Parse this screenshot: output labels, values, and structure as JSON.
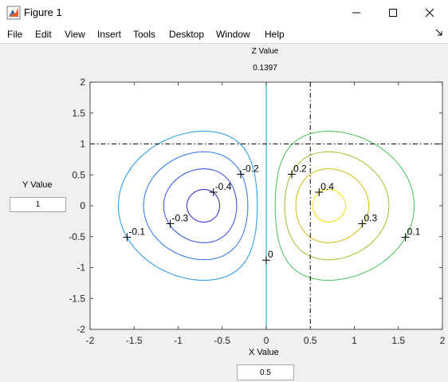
{
  "window": {
    "title": "Figure 1"
  },
  "menu": [
    "File",
    "Edit",
    "View",
    "Insert",
    "Tools",
    "Desktop",
    "Window",
    "Help"
  ],
  "z_label": "Z Value",
  "z_value": "0.1397",
  "y_label": "Y Value",
  "y_value": "1",
  "x_label": "X Value",
  "x_value": "0.5",
  "chart_data": {
    "type": "contour",
    "xlim": [
      -2,
      2
    ],
    "ylim": [
      -2,
      2
    ],
    "xticks": [
      "-2",
      "-1.5",
      "-1",
      "-0.5",
      "0",
      "0.5",
      "1",
      "1.5",
      "2"
    ],
    "yticks": [
      "2",
      "1.5",
      "1",
      "0.5",
      "0",
      "-0.5",
      "-1",
      "-1.5",
      "-2"
    ],
    "crosshair": {
      "x": 0.5,
      "y": 1
    },
    "levels": [
      -0.4,
      -0.3,
      -0.2,
      -0.1,
      0,
      0.1,
      0.2,
      0.3,
      0.4
    ],
    "labels": [
      {
        "text": "-0.4",
        "x": -0.6,
        "y": 0.22
      },
      {
        "text": "-0.3",
        "x": -1.09,
        "y": -0.29
      },
      {
        "text": "-0.2",
        "x": -0.29,
        "y": 0.51
      },
      {
        "text": "-0.1",
        "x": -1.58,
        "y": -0.51
      },
      {
        "text": "0",
        "x": 0,
        "y": -0.88
      },
      {
        "text": "0.1",
        "x": 1.58,
        "y": -0.51
      },
      {
        "text": "0.2",
        "x": 0.29,
        "y": 0.51
      },
      {
        "text": "0.3",
        "x": 1.09,
        "y": -0.29
      },
      {
        "text": "0.4",
        "x": 0.6,
        "y": 0.22
      }
    ],
    "colors": {
      "-0.4": "#3a38c8",
      "-0.3": "#3f58e0",
      "-0.2": "#3a7ef0",
      "-0.1": "#2f9fe6",
      "0": "#22bcc6",
      "0.1": "#52c866",
      "0.2": "#a0c83a",
      "0.3": "#d4c21e",
      "0.4": "#f2e410"
    }
  }
}
